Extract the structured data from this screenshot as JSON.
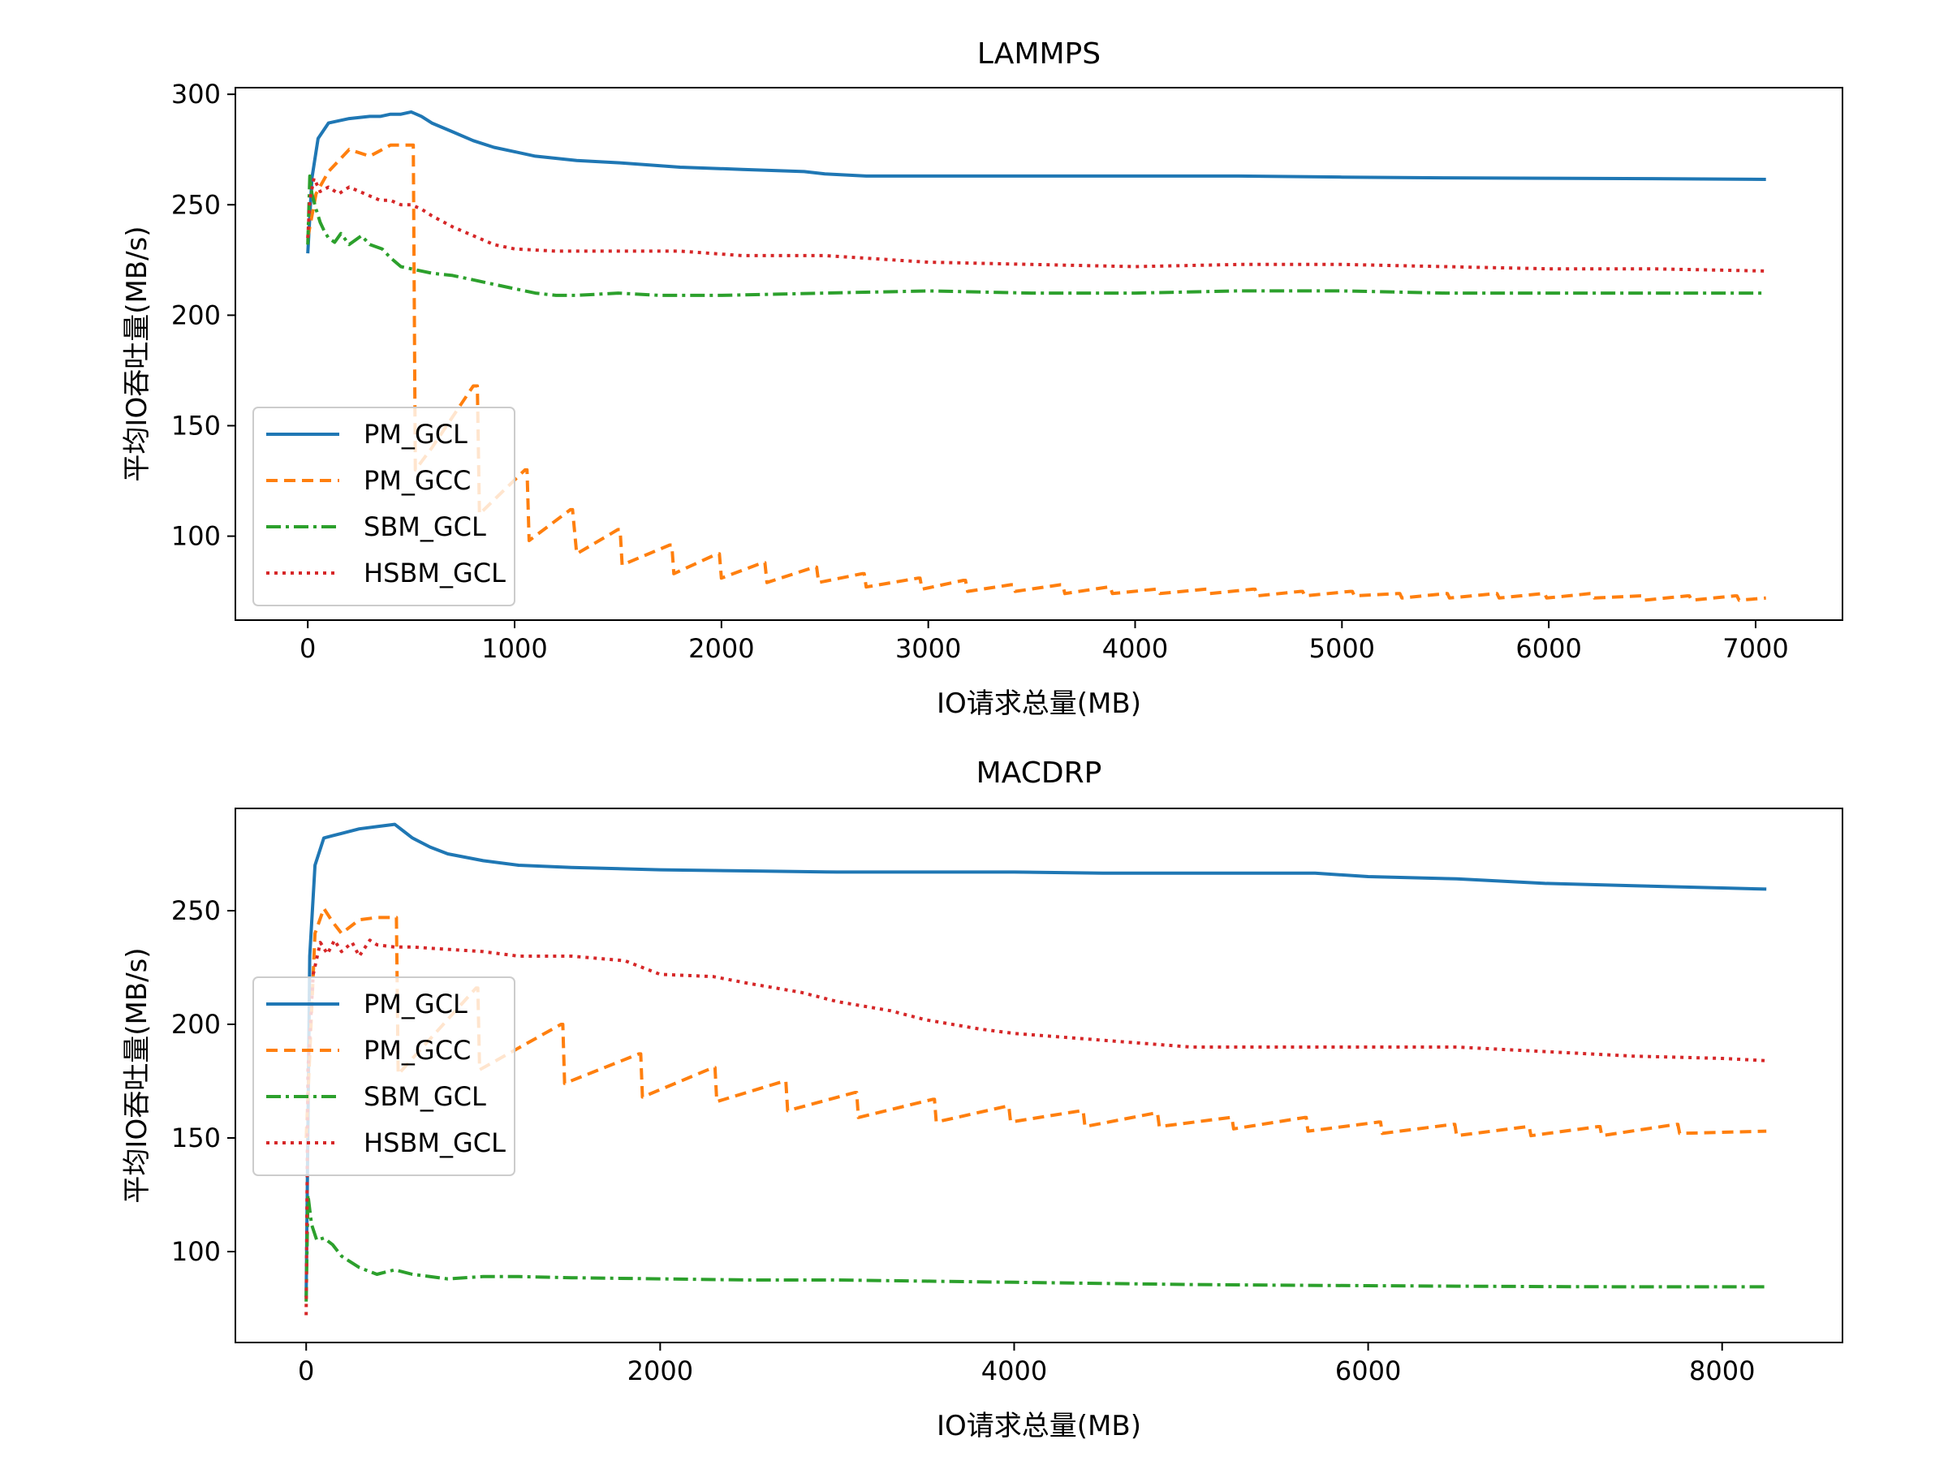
{
  "chart_data": [
    {
      "type": "line",
      "title": "LAMMPS",
      "xlabel": "IO请求总量(MB)",
      "ylabel": "平均IO吞吐量(MB/s)",
      "xlim": [
        -350,
        7420
      ],
      "ylim": [
        62,
        303
      ],
      "xticks": [
        0,
        1000,
        2000,
        3000,
        4000,
        5000,
        6000,
        7000
      ],
      "yticks": [
        100,
        150,
        200,
        250,
        300
      ],
      "grid": false,
      "legend_position": "lower-left",
      "series": [
        {
          "name": "PM_GCL",
          "color": "#1f77b4",
          "dash": "",
          "x": [
            0,
            20,
            50,
            100,
            150,
            200,
            300,
            350,
            400,
            450,
            500,
            550,
            600,
            700,
            800,
            900,
            1000,
            1100,
            1300,
            1500,
            1800,
            2100,
            2400,
            2500,
            2700,
            3000,
            3500,
            4000,
            4500,
            5000,
            5500,
            6000,
            6500,
            7050
          ],
          "y": [
            228,
            262,
            280,
            287,
            288,
            289,
            290,
            290,
            291,
            291,
            292,
            290,
            287,
            283,
            279,
            276,
            274,
            272,
            270,
            269,
            267,
            266,
            265,
            264,
            263,
            263,
            263,
            263,
            263,
            262.5,
            262.2,
            262,
            261.8,
            261.5
          ]
        },
        {
          "name": "PM_GCC",
          "color": "#ff7f0e",
          "dash": "14 8",
          "x": [
            0,
            40,
            100,
            200,
            300,
            400,
            500,
            510,
            520,
            600,
            800,
            820,
            830,
            1050,
            1060,
            1070,
            1270,
            1280,
            1300,
            1500,
            1510,
            1520,
            1750,
            1760,
            1770,
            1980,
            1990,
            2000,
            2200,
            2210,
            2220,
            2450,
            2460,
            2470,
            2680,
            2690,
            2700,
            2950,
            2960,
            2970,
            3170,
            3180,
            3190,
            3400,
            3410,
            3420,
            3640,
            3650,
            3660,
            3870,
            3880,
            3890,
            4100,
            4110,
            4120,
            4340,
            4350,
            4360,
            4570,
            4580,
            4590,
            4800,
            4810,
            4820,
            5040,
            5050,
            5060,
            5270,
            5280,
            5290,
            5500,
            5510,
            5520,
            5740,
            5750,
            5760,
            5970,
            5980,
            5990,
            6200,
            6210,
            6220,
            6440,
            6450,
            6460,
            6670,
            6680,
            6690,
            6900,
            6910,
            6920,
            7050
          ],
          "y": [
            235,
            255,
            265,
            275,
            272,
            277,
            277,
            277,
            130,
            140,
            168,
            168,
            110,
            130,
            130,
            98,
            112,
            112,
            92,
            103,
            103,
            87,
            96,
            96,
            83,
            92,
            92,
            81,
            88,
            88,
            79,
            86,
            86,
            79,
            83,
            83,
            77,
            81,
            81,
            76,
            80,
            80,
            75,
            78,
            78,
            75,
            78,
            78,
            74,
            77,
            77,
            74,
            76,
            76,
            74,
            76,
            76,
            74,
            76,
            76,
            73,
            75,
            75,
            73,
            75,
            75,
            73,
            74,
            74,
            72,
            74,
            74,
            72,
            74,
            74,
            72,
            74,
            74,
            72,
            74,
            74,
            72,
            73,
            73,
            71,
            73,
            73,
            71,
            73,
            73,
            71,
            72
          ]
        },
        {
          "name": "SBM_GCL",
          "color": "#2ca02c",
          "dash": "18 6 4 6",
          "x": [
            0,
            10,
            20,
            40,
            60,
            80,
            100,
            130,
            160,
            200,
            260,
            300,
            360,
            400,
            450,
            500,
            600,
            700,
            800,
            900,
            1000,
            1100,
            1200,
            1300,
            1500,
            1700,
            2000,
            2500,
            3000,
            3500,
            4000,
            4500,
            5000,
            5500,
            6000,
            6500,
            7050
          ],
          "y": [
            232,
            263,
            255,
            248,
            242,
            238,
            235,
            233,
            237,
            232,
            236,
            232,
            230,
            226,
            222,
            221,
            219,
            218,
            216,
            214,
            212,
            210,
            209,
            209,
            210,
            209,
            209,
            210,
            211,
            210,
            210,
            211,
            211,
            210,
            210,
            210,
            210
          ]
        },
        {
          "name": "HSBM_GCL",
          "color": "#d62728",
          "dash": "4 6",
          "x": [
            0,
            10,
            30,
            60,
            100,
            150,
            200,
            250,
            300,
            350,
            400,
            450,
            500,
            550,
            600,
            700,
            800,
            900,
            1000,
            1200,
            1500,
            1800,
            2100,
            2500,
            3000,
            3500,
            4000,
            4500,
            5000,
            5500,
            6000,
            6500,
            7050
          ],
          "y": [
            235,
            252,
            262,
            256,
            258,
            255,
            258,
            256,
            254,
            252,
            252,
            250,
            250,
            248,
            245,
            240,
            236,
            232,
            230,
            229,
            229,
            229,
            227,
            227,
            224,
            223,
            222,
            223,
            223,
            222,
            221,
            221,
            220
          ]
        }
      ]
    },
    {
      "type": "line",
      "title": "MACDRP",
      "xlabel": "IO请求总量(MB)",
      "ylabel": "平均IO吞吐量(MB/s)",
      "xlim": [
        -400,
        8680
      ],
      "ylim": [
        60,
        295
      ],
      "xticks": [
        0,
        2000,
        4000,
        6000,
        8000
      ],
      "yticks": [
        100,
        150,
        200,
        250
      ],
      "grid": false,
      "legend_position": "center-left",
      "series": [
        {
          "name": "PM_GCL",
          "color": "#1f77b4",
          "dash": "",
          "x": [
            0,
            20,
            50,
            100,
            150,
            200,
            300,
            400,
            500,
            550,
            600,
            700,
            800,
            1000,
            1200,
            1500,
            2000,
            2500,
            3000,
            3500,
            4000,
            4500,
            5000,
            5700,
            6000,
            6500,
            7000,
            7500,
            8000,
            8250
          ],
          "y": [
            80,
            230,
            270,
            282,
            283,
            284,
            286,
            287,
            288,
            285,
            282,
            278,
            275,
            272,
            270,
            269,
            268,
            267.5,
            267,
            267,
            267,
            266.5,
            266.5,
            266.5,
            265,
            264,
            262,
            261,
            260,
            259.5
          ]
        },
        {
          "name": "PM_GCC",
          "color": "#ff7f0e",
          "dash": "14 8",
          "x": [
            0,
            50,
            100,
            150,
            200,
            300,
            400,
            500,
            510,
            520,
            960,
            970,
            980,
            1440,
            1450,
            1460,
            1880,
            1890,
            1900,
            2300,
            2310,
            2320,
            2700,
            2710,
            2720,
            3100,
            3110,
            3120,
            3540,
            3550,
            3560,
            3960,
            3970,
            3980,
            4380,
            4390,
            4400,
            4800,
            4810,
            4820,
            5220,
            5230,
            5240,
            5640,
            5650,
            5660,
            6060,
            6070,
            6080,
            6480,
            6490,
            6500,
            6900,
            6910,
            6920,
            7300,
            7310,
            7320,
            7740,
            7750,
            7760,
            8250
          ],
          "y": [
            150,
            240,
            251,
            245,
            240,
            246,
            247,
            247,
            247,
            178,
            216,
            216,
            180,
            200,
            200,
            174,
            187,
            187,
            168,
            181,
            181,
            166,
            175,
            175,
            162,
            170,
            170,
            159,
            167,
            167,
            157,
            164,
            164,
            157,
            162,
            162,
            155,
            161,
            161,
            155,
            159,
            159,
            154,
            159,
            159,
            153,
            157,
            157,
            152,
            156,
            156,
            151,
            155,
            155,
            151,
            155,
            155,
            151,
            156,
            156,
            152,
            153
          ]
        },
        {
          "name": "SBM_GCL",
          "color": "#2ca02c",
          "dash": "18 6 4 6",
          "x": [
            0,
            10,
            30,
            60,
            100,
            150,
            200,
            300,
            400,
            500,
            600,
            800,
            1000,
            1200,
            1500,
            2000,
            2500,
            3000,
            3500,
            4000,
            4500,
            5000,
            5500,
            6000,
            6500,
            7000,
            7500,
            8000,
            8250
          ],
          "y": [
            78,
            125,
            112,
            105,
            106,
            103,
            98,
            93,
            90,
            92,
            90,
            88,
            89,
            89,
            88.5,
            88,
            87.5,
            87.5,
            87,
            86.5,
            86,
            85.5,
            85.2,
            85,
            84.8,
            84.6,
            84.5,
            84.5,
            84.5
          ]
        },
        {
          "name": "HSBM_GCL",
          "color": "#d62728",
          "dash": "4 6",
          "x": [
            0,
            10,
            40,
            80,
            120,
            160,
            200,
            260,
            300,
            360,
            400,
            500,
            600,
            800,
            1000,
            1200,
            1500,
            1800,
            2000,
            2300,
            2500,
            2800,
            3000,
            3300,
            3500,
            3800,
            4000,
            4500,
            5000,
            5500,
            6000,
            6500,
            7000,
            7500,
            8000,
            8250
          ],
          "y": [
            72,
            180,
            222,
            236,
            231,
            237,
            232,
            236,
            230,
            237,
            235,
            234,
            234,
            233,
            232,
            230,
            230,
            228,
            222,
            221,
            218,
            214,
            210,
            206,
            202,
            198,
            196,
            193,
            190,
            190,
            190,
            190,
            188,
            186,
            185,
            184
          ]
        }
      ]
    }
  ]
}
